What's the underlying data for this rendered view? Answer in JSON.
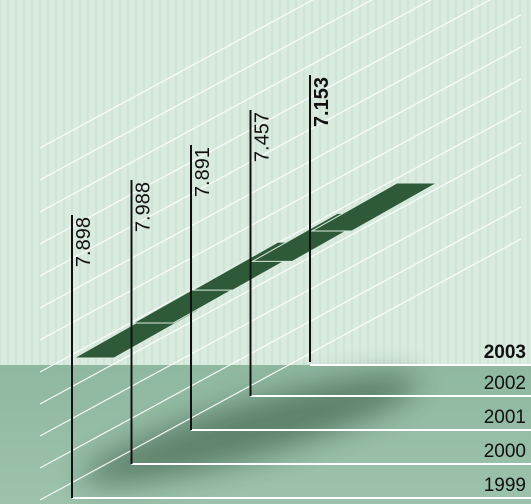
{
  "chart_data": {
    "type": "line",
    "title": "",
    "xlabel": "",
    "ylabel": "",
    "categories": [
      "1999",
      "2000",
      "2001",
      "2002",
      "2003"
    ],
    "values": [
      7.898,
      7.988,
      7.891,
      7.457,
      7.153
    ],
    "value_labels": [
      "7.898",
      "7.988",
      "7.891",
      "7.457",
      "7.153"
    ],
    "highlight_category": "2003",
    "grid": false,
    "legend": "none"
  },
  "colors": {
    "background_light": "#d9eadf",
    "floor": "#8fb8a0",
    "ribbon": "#2f5a3a",
    "axis_line": "#111111",
    "grid_line": "#ffffff"
  }
}
